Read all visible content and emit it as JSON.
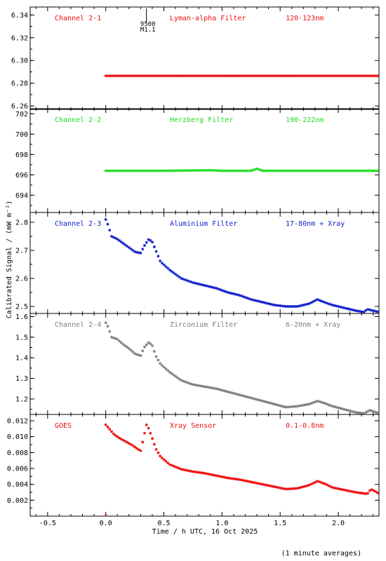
{
  "figure": {
    "ylabel": "Calibrated Signal / (mW m⁻²)",
    "xlabel": "Time / h UTC, 16 Oct 2025",
    "footnote": "(1 minute averages)",
    "xlim": [
      -0.65,
      2.35
    ],
    "xticks": [
      "-0.5",
      "0.0",
      "0.5",
      "1.0",
      "1.5",
      "2.0"
    ],
    "xtick_values": [
      -0.5,
      0.0,
      0.5,
      1.0,
      1.5,
      2.0
    ],
    "flare_marker": {
      "time": 0.35,
      "label_top": "9500",
      "label_bottom": "M1.1"
    }
  },
  "chart_data": [
    {
      "type": "scatter",
      "channel": "Channel 2-1",
      "filter": "Lyman-alpha Filter",
      "band": "120-123nm",
      "color": "#ee1111",
      "ylim": [
        6.257,
        6.347
      ],
      "yticks": [
        "6.26",
        "6.28",
        "6.30",
        "6.32",
        "6.34"
      ],
      "ytick_values": [
        6.26,
        6.28,
        6.3,
        6.32,
        6.34
      ],
      "x_range": [
        0.0,
        2.35
      ],
      "series_points": [
        [
          0.0,
          6.2865
        ],
        [
          0.5,
          6.2865
        ],
        [
          1.0,
          6.2865
        ],
        [
          1.5,
          6.2865
        ],
        [
          2.0,
          6.2865
        ],
        [
          2.35,
          6.2865
        ]
      ]
    },
    {
      "type": "scatter",
      "channel": "Channel 2-2",
      "filter": "Herzberg Filter",
      "band": "190-222nm",
      "color": "#22dd22",
      "ylim": [
        692.3,
        702.5
      ],
      "yticks": [
        "694",
        "696",
        "698",
        "700",
        "702"
      ],
      "ytick_values": [
        694,
        696,
        698,
        700,
        702
      ],
      "x_range": [
        0.0,
        2.35
      ],
      "series_points": [
        [
          0.0,
          696.4
        ],
        [
          0.5,
          696.4
        ],
        [
          0.9,
          696.45
        ],
        [
          1.0,
          696.4
        ],
        [
          1.25,
          696.4
        ],
        [
          1.3,
          696.6
        ],
        [
          1.35,
          696.4
        ],
        [
          2.0,
          696.4
        ],
        [
          2.35,
          696.4
        ]
      ]
    },
    {
      "type": "scatter",
      "channel": "Channel 2-3",
      "filter": "Aluminium Filter",
      "band": "17-80nm + Xray",
      "color": "#1122cc",
      "ylim": [
        2.475,
        2.835
      ],
      "yticks": [
        "2.5",
        "2.6",
        "2.7",
        "2.8"
      ],
      "ytick_values": [
        2.5,
        2.6,
        2.7,
        2.8
      ],
      "x_range": [
        0.0,
        2.35
      ],
      "series_points": [
        [
          0.0,
          2.81
        ],
        [
          0.02,
          2.79
        ],
        [
          0.05,
          2.75
        ],
        [
          0.1,
          2.74
        ],
        [
          0.15,
          2.725
        ],
        [
          0.2,
          2.71
        ],
        [
          0.25,
          2.695
        ],
        [
          0.3,
          2.69
        ],
        [
          0.33,
          2.715
        ],
        [
          0.37,
          2.74
        ],
        [
          0.4,
          2.73
        ],
        [
          0.43,
          2.7
        ],
        [
          0.47,
          2.66
        ],
        [
          0.55,
          2.63
        ],
        [
          0.65,
          2.6
        ],
        [
          0.75,
          2.585
        ],
        [
          0.85,
          2.575
        ],
        [
          0.95,
          2.565
        ],
        [
          1.05,
          2.55
        ],
        [
          1.15,
          2.54
        ],
        [
          1.25,
          2.525
        ],
        [
          1.35,
          2.515
        ],
        [
          1.45,
          2.505
        ],
        [
          1.55,
          2.5
        ],
        [
          1.65,
          2.5
        ],
        [
          1.75,
          2.51
        ],
        [
          1.82,
          2.525
        ],
        [
          1.88,
          2.515
        ],
        [
          1.95,
          2.505
        ],
        [
          2.05,
          2.495
        ],
        [
          2.15,
          2.485
        ],
        [
          2.22,
          2.48
        ],
        [
          2.25,
          2.49
        ],
        [
          2.3,
          2.485
        ],
        [
          2.35,
          2.48
        ]
      ]
    },
    {
      "type": "scatter",
      "channel": "Channel 2-4",
      "filter": "Zirconium Filter",
      "band": "6-20nm + Xray",
      "color": "#808080",
      "ylim": [
        1.125,
        1.615
      ],
      "yticks": [
        "1.2",
        "1.3",
        "1.4",
        "1.5",
        "1.6"
      ],
      "ytick_values": [
        1.2,
        1.3,
        1.4,
        1.5,
        1.6
      ],
      "x_range": [
        0.0,
        2.35
      ],
      "series_points": [
        [
          0.0,
          1.57
        ],
        [
          0.02,
          1.55
        ],
        [
          0.05,
          1.5
        ],
        [
          0.1,
          1.49
        ],
        [
          0.15,
          1.465
        ],
        [
          0.2,
          1.445
        ],
        [
          0.25,
          1.42
        ],
        [
          0.3,
          1.41
        ],
        [
          0.33,
          1.45
        ],
        [
          0.37,
          1.475
        ],
        [
          0.4,
          1.46
        ],
        [
          0.43,
          1.41
        ],
        [
          0.47,
          1.37
        ],
        [
          0.55,
          1.33
        ],
        [
          0.65,
          1.29
        ],
        [
          0.75,
          1.27
        ],
        [
          0.85,
          1.26
        ],
        [
          0.95,
          1.25
        ],
        [
          1.05,
          1.235
        ],
        [
          1.15,
          1.22
        ],
        [
          1.25,
          1.205
        ],
        [
          1.35,
          1.19
        ],
        [
          1.45,
          1.175
        ],
        [
          1.55,
          1.16
        ],
        [
          1.65,
          1.165
        ],
        [
          1.75,
          1.175
        ],
        [
          1.82,
          1.19
        ],
        [
          1.88,
          1.18
        ],
        [
          1.95,
          1.165
        ],
        [
          2.05,
          1.15
        ],
        [
          2.15,
          1.135
        ],
        [
          2.22,
          1.13
        ],
        [
          2.27,
          1.145
        ],
        [
          2.3,
          1.14
        ],
        [
          2.35,
          1.13
        ]
      ]
    },
    {
      "type": "scatter",
      "channel": "GOES",
      "filter": "Xray Sensor",
      "band": "0.1-0.8nm",
      "color": "#ee1111",
      "ylim": [
        0.0,
        0.0128
      ],
      "yticks": [
        "0.002",
        "0.004",
        "0.006",
        "0.008",
        "0.010",
        "0.012"
      ],
      "ytick_values": [
        0.002,
        0.004,
        0.006,
        0.008,
        0.01,
        0.012
      ],
      "x_range": [
        0.0,
        2.35
      ],
      "series_points": [
        [
          0.0,
          0.0115
        ],
        [
          0.03,
          0.011
        ],
        [
          0.07,
          0.0103
        ],
        [
          0.12,
          0.0098
        ],
        [
          0.17,
          0.0094
        ],
        [
          0.22,
          0.009
        ],
        [
          0.27,
          0.0085
        ],
        [
          0.3,
          0.0082
        ],
        [
          0.32,
          0.0095
        ],
        [
          0.35,
          0.0115
        ],
        [
          0.37,
          0.011
        ],
        [
          0.4,
          0.0098
        ],
        [
          0.43,
          0.0085
        ],
        [
          0.47,
          0.0075
        ],
        [
          0.55,
          0.0065
        ],
        [
          0.65,
          0.0059
        ],
        [
          0.75,
          0.0056
        ],
        [
          0.85,
          0.0054
        ],
        [
          0.95,
          0.0051
        ],
        [
          1.05,
          0.0048
        ],
        [
          1.15,
          0.0046
        ],
        [
          1.25,
          0.0043
        ],
        [
          1.35,
          0.004
        ],
        [
          1.45,
          0.0037
        ],
        [
          1.55,
          0.0034
        ],
        [
          1.65,
          0.0035
        ],
        [
          1.75,
          0.0039
        ],
        [
          1.82,
          0.0044
        ],
        [
          1.88,
          0.0041
        ],
        [
          1.95,
          0.0036
        ],
        [
          2.05,
          0.0033
        ],
        [
          2.15,
          0.003
        ],
        [
          2.25,
          0.0028
        ],
        [
          2.28,
          0.0034
        ],
        [
          2.32,
          0.0031
        ],
        [
          2.35,
          0.0028
        ]
      ]
    }
  ]
}
